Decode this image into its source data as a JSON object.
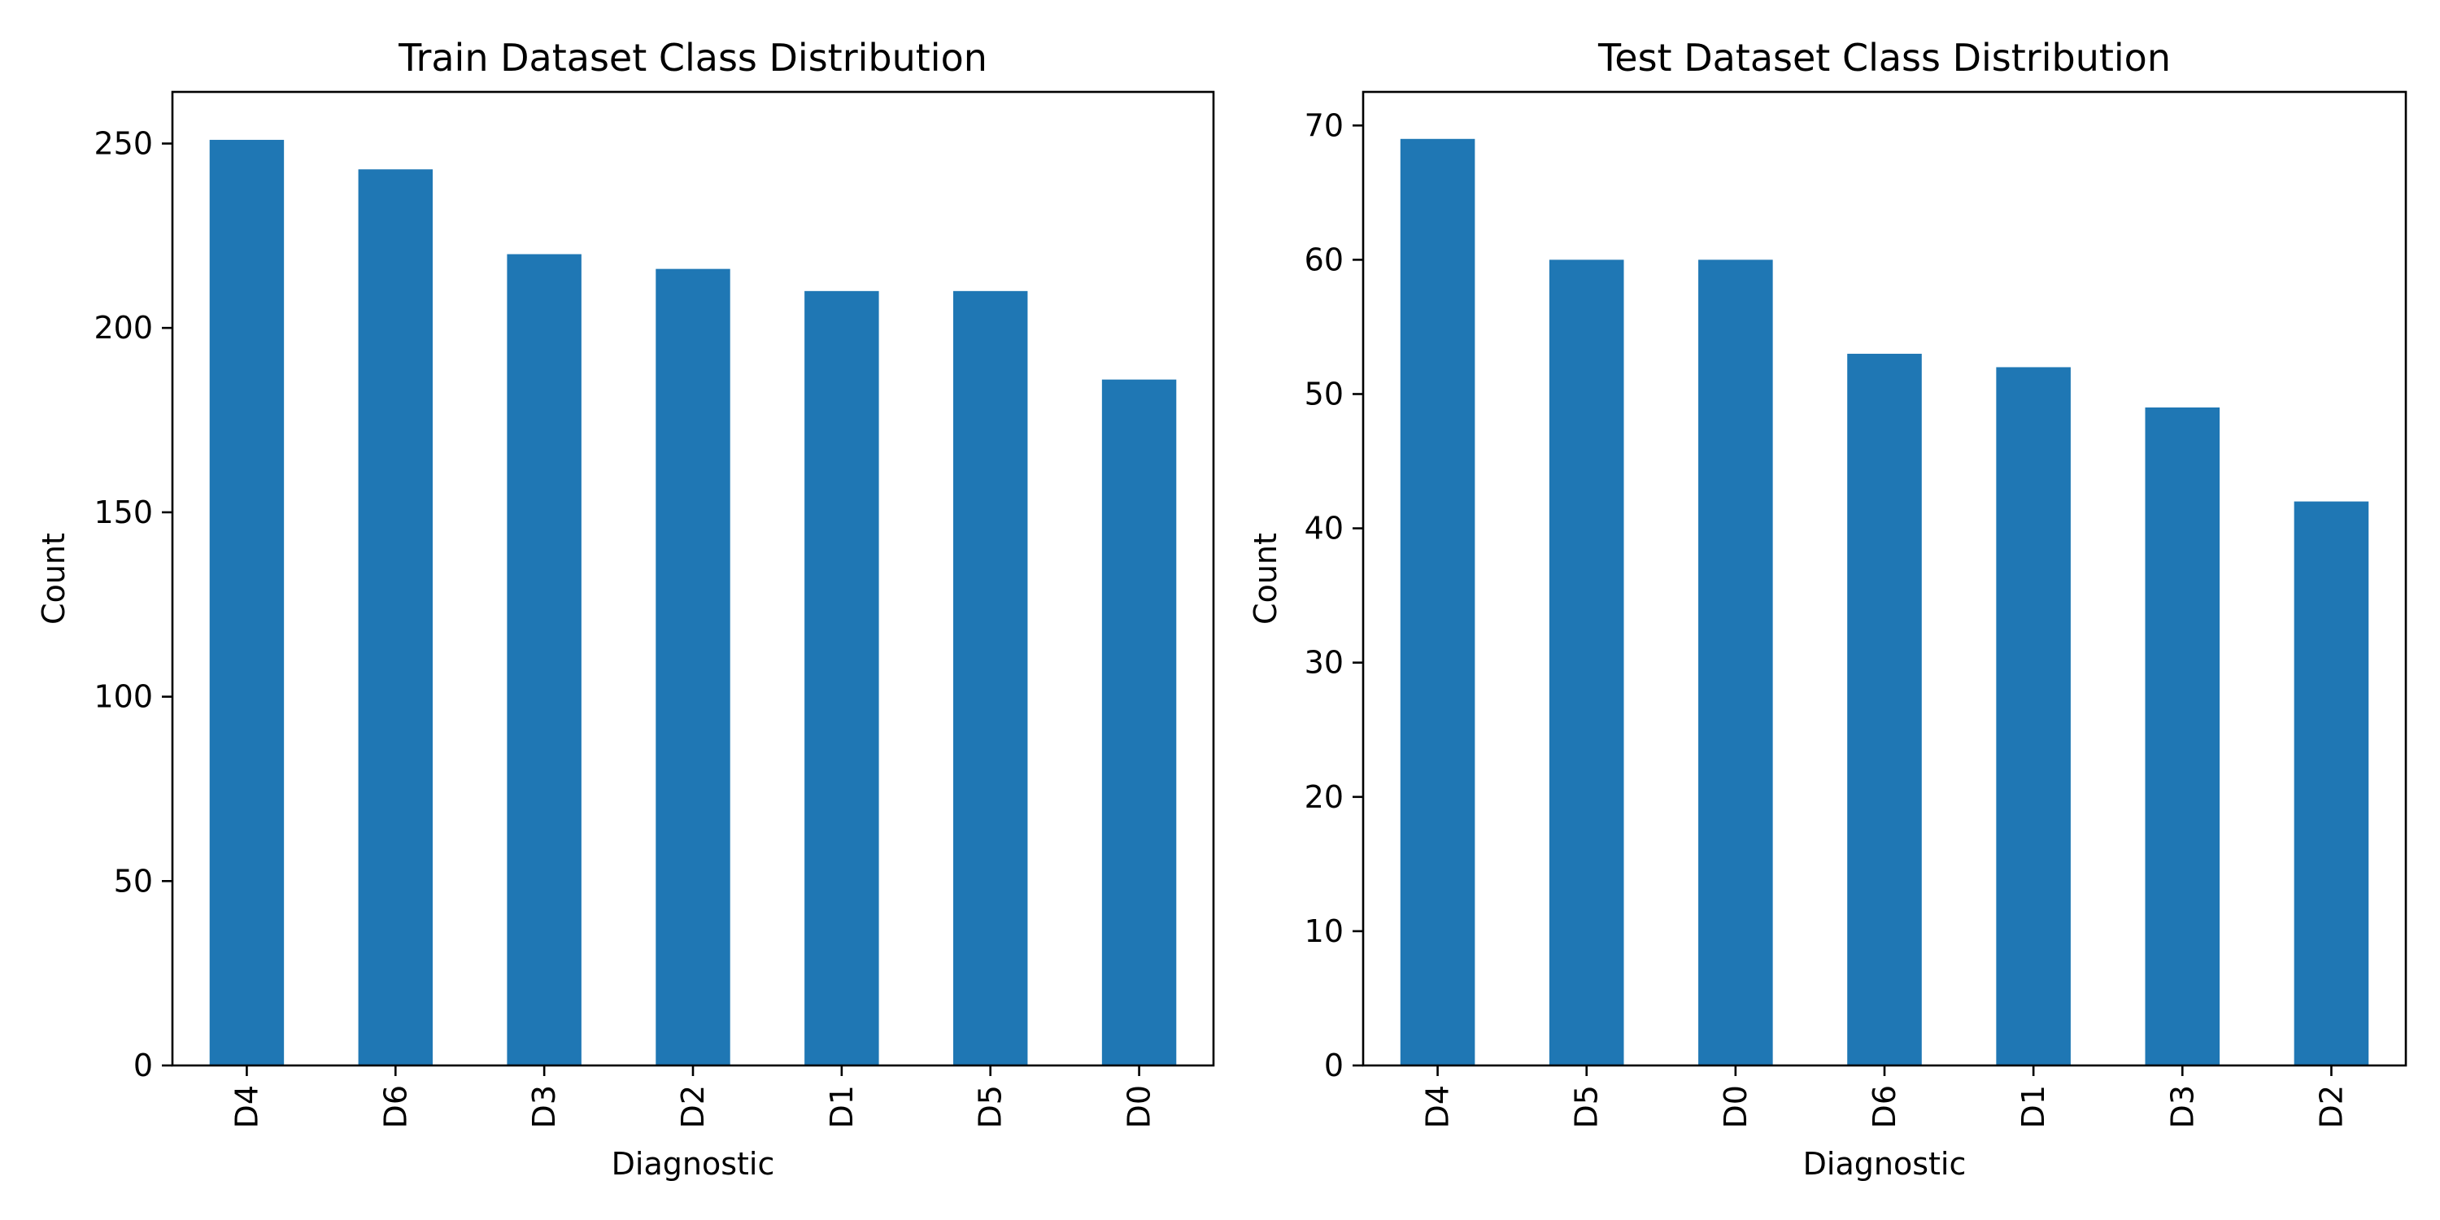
{
  "chart_data": [
    {
      "type": "bar",
      "title": "Train Dataset Class Distribution",
      "xlabel": "Diagnostic",
      "ylabel": "Count",
      "categories": [
        "D4",
        "D6",
        "D3",
        "D2",
        "D1",
        "D5",
        "D0"
      ],
      "values": [
        251,
        243,
        220,
        216,
        210,
        210,
        186
      ],
      "ylim": [
        0,
        264
      ],
      "yticks": [
        "0",
        "50",
        "100",
        "150",
        "200",
        "250"
      ],
      "grid": false,
      "legend": "none",
      "bar_color": "#1f77b4"
    },
    {
      "type": "bar",
      "title": "Test Dataset Class Distribution",
      "xlabel": "Diagnostic",
      "ylabel": "Count",
      "categories": [
        "D4",
        "D5",
        "D0",
        "D6",
        "D1",
        "D3",
        "D2"
      ],
      "values": [
        69,
        60,
        60,
        53,
        52,
        49,
        42
      ],
      "ylim": [
        0,
        72.5
      ],
      "yticks": [
        "0",
        "10",
        "20",
        "30",
        "40",
        "50",
        "60",
        "70"
      ],
      "grid": false,
      "legend": "none",
      "bar_color": "#1f77b4"
    }
  ]
}
